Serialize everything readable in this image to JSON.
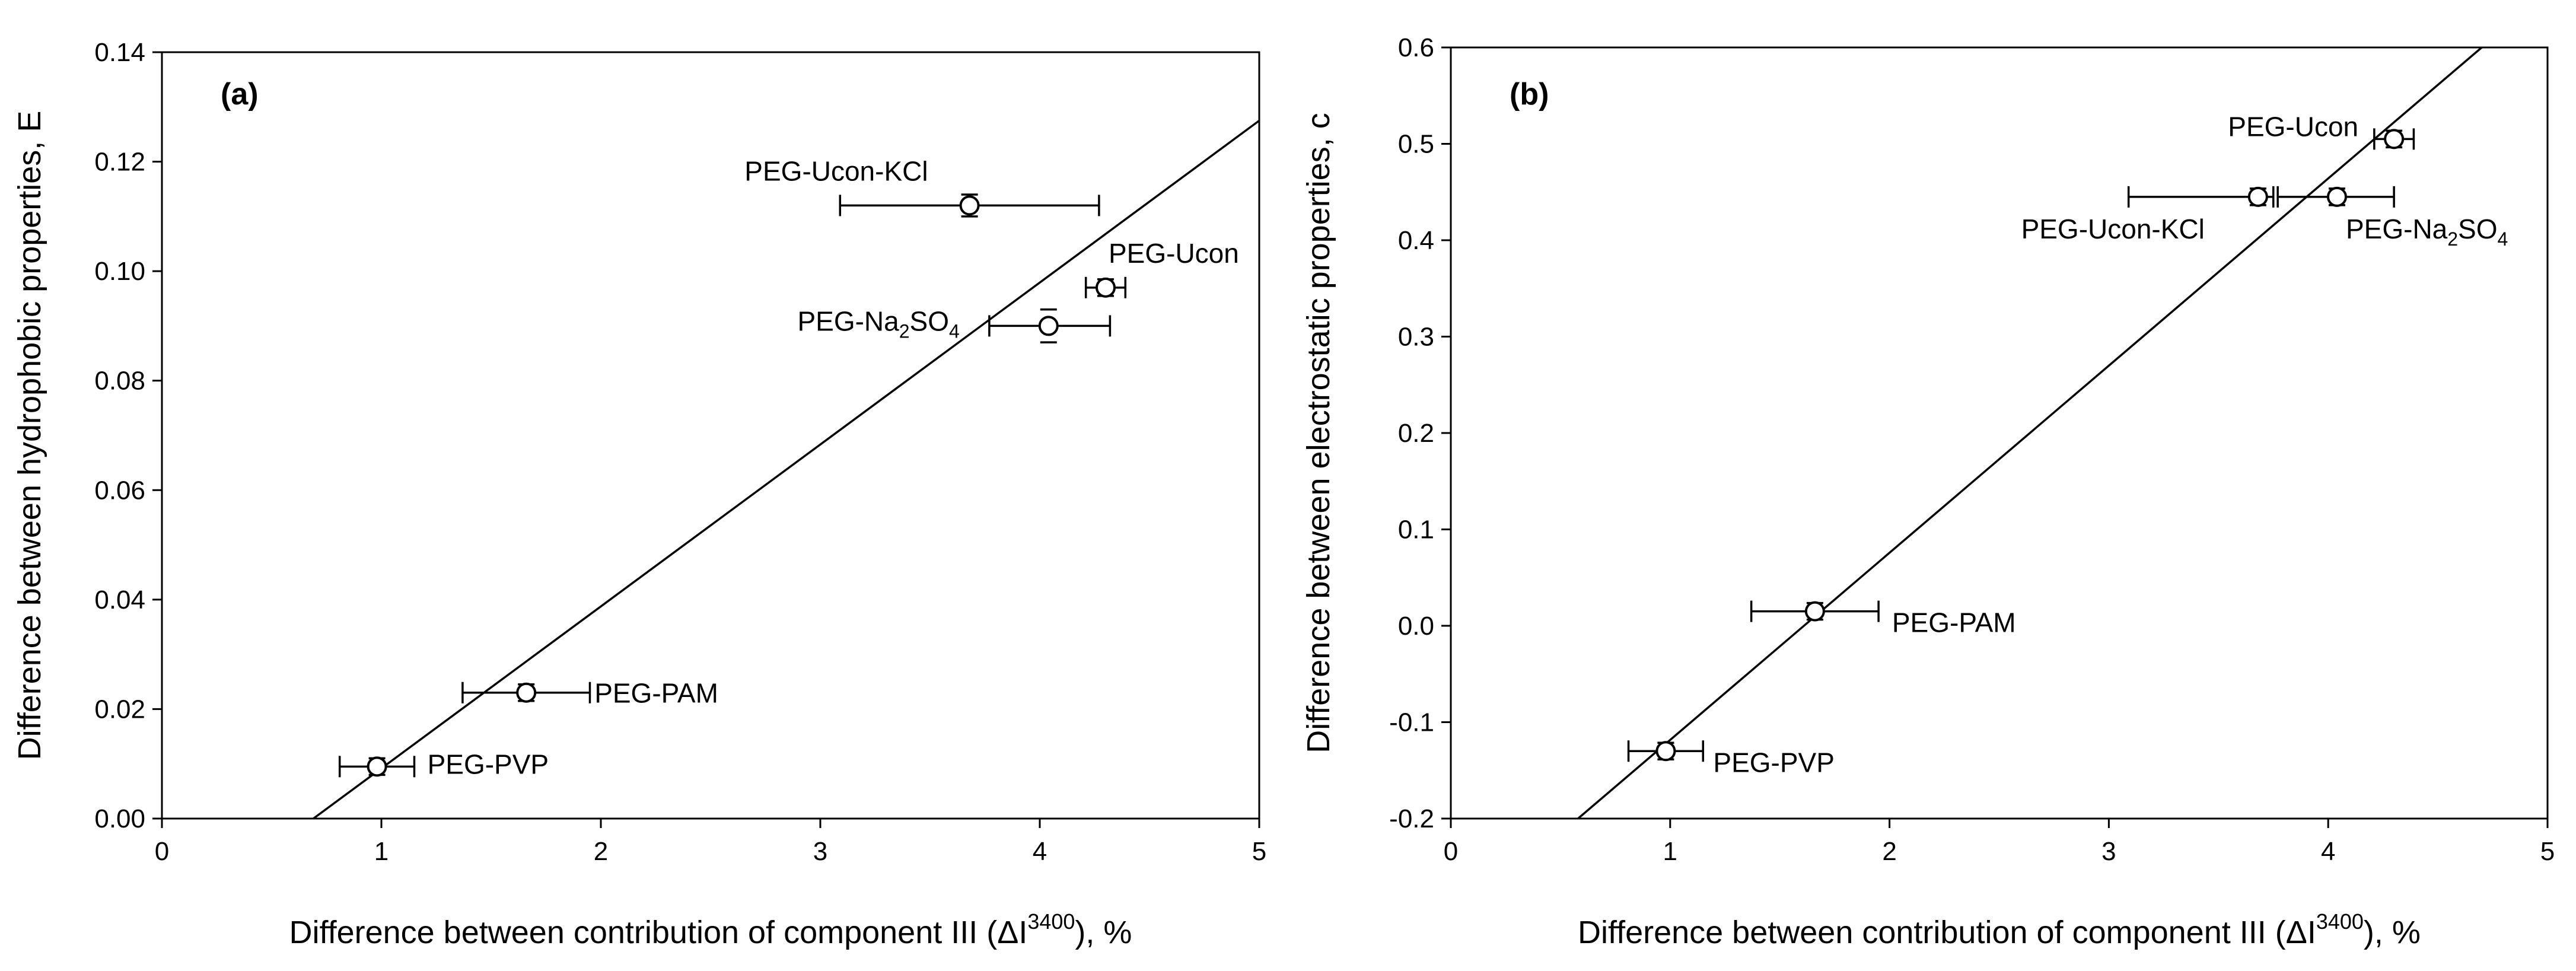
{
  "chart_data": [
    {
      "type": "scatter",
      "panel_label": "(a)",
      "xlabel_prefix": "Difference between contribution of component III (ΔI",
      "xlabel_sup": "3400",
      "xlabel_suffix": "), %",
      "ylabel": "Difference between hydrophobic properties, E",
      "xlim": [
        0,
        5
      ],
      "ylim": [
        0,
        0.14
      ],
      "x_ticks": [
        0,
        1,
        2,
        3,
        4,
        5
      ],
      "x_tick_labels": [
        "0",
        "1",
        "2",
        "3",
        "4",
        "5"
      ],
      "y_ticks": [
        0,
        0.02,
        0.04,
        0.06,
        0.08,
        0.1,
        0.12,
        0.14
      ],
      "y_tick_labels": [
        "0.00",
        "0.02",
        "0.04",
        "0.06",
        "0.08",
        "0.10",
        "0.12",
        "0.14"
      ],
      "points": [
        {
          "label": "PEG-Ucon-KCl",
          "label_sub": "",
          "label_tail": "",
          "x": 3.68,
          "y": 0.112,
          "xerr_low": 3.09,
          "xerr_high": 4.27,
          "yerr": 0.002
        },
        {
          "label": "PEG-Ucon",
          "label_sub": "",
          "label_tail": "",
          "x": 4.3,
          "y": 0.097,
          "xerr_low": 4.21,
          "xerr_high": 4.39,
          "yerr": 0.001
        },
        {
          "label": "PEG-Na",
          "label_sub": "2",
          "label_tail": "SO4",
          "x": 4.04,
          "y": 0.09,
          "xerr_low": 3.77,
          "xerr_high": 4.32,
          "yerr": 0.003
        },
        {
          "label": "PEG-PAM",
          "label_sub": "",
          "label_tail": "",
          "x": 1.66,
          "y": 0.023,
          "xerr_low": 1.37,
          "xerr_high": 1.95,
          "yerr": 0.001
        },
        {
          "label": "PEG-PVP",
          "label_sub": "",
          "label_tail": "",
          "x": 0.98,
          "y": 0.0095,
          "xerr_low": 0.81,
          "xerr_high": 1.15,
          "yerr": 0.001
        }
      ],
      "fit_line": {
        "x": [
          0.69,
          5.0
        ],
        "y": [
          0.0,
          0.1275
        ]
      }
    },
    {
      "type": "scatter",
      "panel_label": "(b)",
      "xlabel_prefix": "Difference between contribution of component III (ΔI",
      "xlabel_sup": "3400",
      "xlabel_suffix": "), %",
      "ylabel": "Difference between electrostatic properties, c",
      "xlim": [
        0,
        5
      ],
      "ylim": [
        -0.2,
        0.6
      ],
      "x_ticks": [
        0,
        1,
        2,
        3,
        4,
        5
      ],
      "x_tick_labels": [
        "0",
        "1",
        "2",
        "3",
        "4",
        "5"
      ],
      "y_ticks": [
        -0.2,
        -0.1,
        0.0,
        0.1,
        0.2,
        0.3,
        0.4,
        0.5,
        0.6
      ],
      "y_tick_labels": [
        "-0.2",
        "-0.1",
        "0.0",
        "0.1",
        "0.2",
        "0.3",
        "0.4",
        "0.5",
        "0.6"
      ],
      "points": [
        {
          "label": "PEG-Ucon",
          "label_sub": "",
          "label_tail": "",
          "x": 4.3,
          "y": 0.505,
          "xerr_low": 4.21,
          "xerr_high": 4.39,
          "yerr": 0.005
        },
        {
          "label": "PEG-Ucon-KCl",
          "label_sub": "",
          "label_tail": "",
          "x": 3.68,
          "y": 0.445,
          "xerr_low": 3.09,
          "xerr_high": 3.75,
          "yerr": 0.005
        },
        {
          "label": "PEG-Na",
          "label_sub": "2",
          "label_tail": "SO4",
          "x": 4.04,
          "y": 0.445,
          "xerr_low": 3.77,
          "xerr_high": 4.3,
          "yerr": 0.005
        },
        {
          "label": "PEG-PAM",
          "label_sub": "",
          "label_tail": "",
          "x": 1.66,
          "y": 0.015,
          "xerr_low": 1.37,
          "xerr_high": 1.95,
          "yerr": 0.005
        },
        {
          "label": "PEG-PVP",
          "label_sub": "",
          "label_tail": "",
          "x": 0.98,
          "y": -0.13,
          "xerr_low": 0.81,
          "xerr_high": 1.15,
          "yerr": 0.005
        }
      ],
      "fit_line": {
        "x": [
          0.58,
          4.7
        ],
        "y": [
          -0.2,
          0.6
        ]
      }
    }
  ]
}
